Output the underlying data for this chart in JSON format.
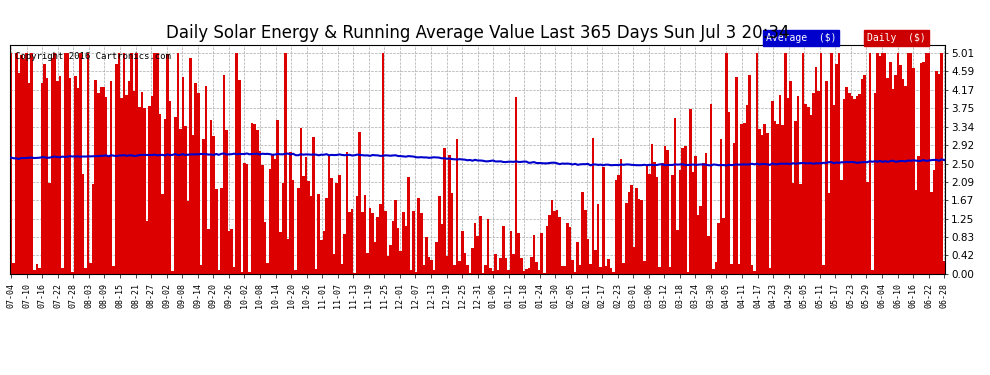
{
  "title": "Daily Solar Energy & Running Average Value Last 365 Days Sun Jul 3 20:34",
  "copyright": "Copyright 2016 Cartronics.com",
  "title_fontsize": 12,
  "background_color": "#ffffff",
  "bar_color": "#dd0000",
  "avg_color": "#0000cc",
  "ylim": [
    0.0,
    5.19
  ],
  "yticks": [
    0.0,
    0.42,
    0.83,
    1.25,
    1.67,
    2.09,
    2.5,
    2.92,
    3.34,
    3.75,
    4.17,
    4.59,
    5.01
  ],
  "n_days": 365,
  "legend_avg_label": "Average  ($)",
  "legend_daily_label": "Daily  ($)",
  "avg_keypoints_x": [
    0,
    40,
    90,
    150,
    182,
    230,
    280,
    320,
    364
  ],
  "avg_keypoints_y": [
    2.62,
    2.68,
    2.72,
    2.68,
    2.57,
    2.47,
    2.47,
    2.52,
    2.58
  ],
  "x_tick_labels": [
    "07-04",
    "07-10",
    "07-16",
    "07-22",
    "07-28",
    "08-03",
    "08-09",
    "08-15",
    "08-21",
    "08-27",
    "09-02",
    "09-08",
    "09-14",
    "09-20",
    "09-26",
    "10-02",
    "10-08",
    "10-14",
    "10-20",
    "10-26",
    "11-01",
    "11-07",
    "11-13",
    "11-19",
    "11-25",
    "12-01",
    "12-07",
    "12-13",
    "12-19",
    "12-25",
    "12-31",
    "01-06",
    "01-12",
    "01-18",
    "01-24",
    "01-30",
    "02-05",
    "02-11",
    "02-17",
    "02-23",
    "03-01",
    "03-06",
    "03-12",
    "03-18",
    "03-24",
    "03-30",
    "04-05",
    "04-11",
    "04-17",
    "04-23",
    "04-29",
    "05-05",
    "05-11",
    "05-17",
    "05-23",
    "05-29",
    "06-04",
    "06-10",
    "06-16",
    "06-22",
    "06-28"
  ]
}
